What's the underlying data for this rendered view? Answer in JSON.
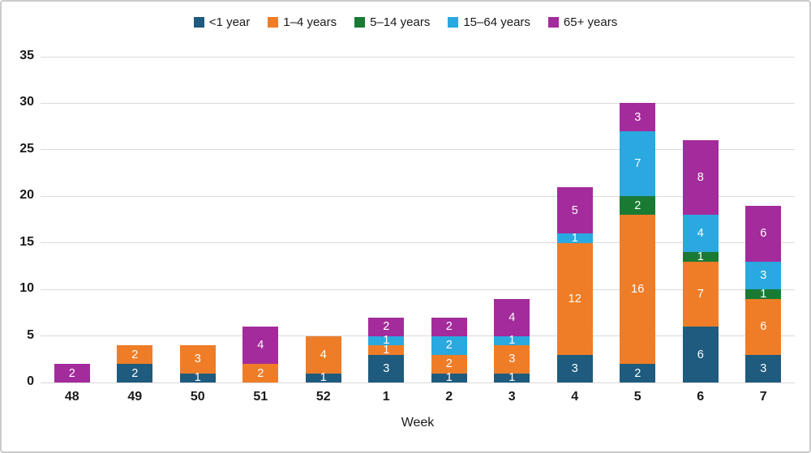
{
  "chart_data": {
    "type": "bar",
    "stacked": true,
    "categories": [
      "48",
      "49",
      "50",
      "51",
      "52",
      "1",
      "2",
      "3",
      "4",
      "5",
      "6",
      "7"
    ],
    "series": [
      {
        "name": "<1 year",
        "color": "#1e5b7e",
        "values": [
          0,
          2,
          1,
          0,
          1,
          3,
          1,
          1,
          3,
          2,
          6,
          3
        ]
      },
      {
        "name": "1–4 years",
        "color": "#ef7d28",
        "values": [
          0,
          2,
          3,
          2,
          4,
          1,
          2,
          3,
          12,
          16,
          7,
          6
        ]
      },
      {
        "name": "5–14 years",
        "color": "#1a7a34",
        "values": [
          0,
          0,
          0,
          0,
          0,
          0,
          0,
          0,
          0,
          2,
          1,
          1
        ]
      },
      {
        "name": "15–64 years",
        "color": "#29a9e0",
        "values": [
          0,
          0,
          0,
          0,
          0,
          1,
          2,
          1,
          1,
          7,
          4,
          3
        ]
      },
      {
        "name": "65+ years",
        "color": "#a42b9b",
        "values": [
          2,
          0,
          0,
          4,
          0,
          2,
          2,
          4,
          5,
          3,
          8,
          6
        ]
      }
    ],
    "totals": [
      2,
      4,
      4,
      6,
      5,
      7,
      7,
      9,
      21,
      30,
      26,
      19
    ],
    "xlabel": "Week",
    "ylabel": "",
    "ylim": [
      0,
      35
    ],
    "ytick_step": 5,
    "yticks": [
      0,
      5,
      10,
      15,
      20,
      25,
      30,
      35
    ],
    "grid": true,
    "legend_position": "top",
    "value_label_color": "#ffffff",
    "gridline_color": "#dadada"
  }
}
